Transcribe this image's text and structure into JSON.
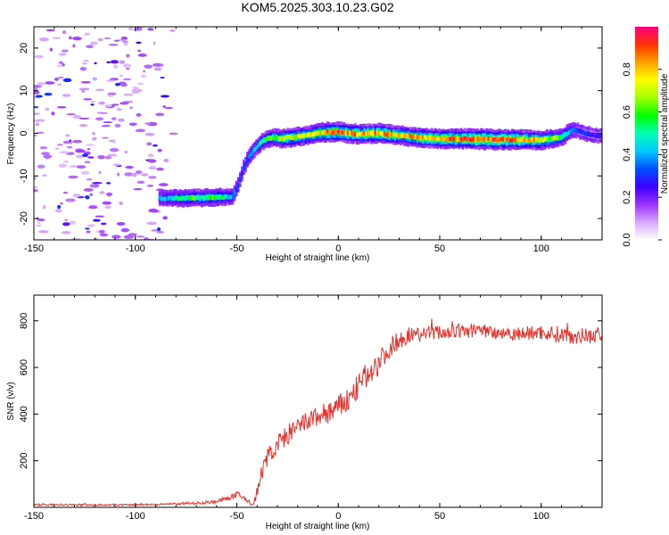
{
  "title": "KOM5.2025.303.10.23.G02",
  "chart_data": [
    {
      "type": "heatmap",
      "xlabel": "Height of straight line (km)",
      "ylabel": "Frequency (Hz)",
      "xlim": [
        -150,
        130
      ],
      "ylim": [
        -25,
        25
      ],
      "xticks": [
        -150,
        -100,
        -50,
        0,
        50,
        100
      ],
      "yticks": [
        -20,
        -10,
        0,
        10,
        20
      ],
      "colorbar": {
        "label": "Normalized spectral amplitude",
        "range": [
          0,
          1
        ],
        "ticks": [
          "0.0",
          "0.2",
          "0.4",
          "0.6",
          "0.8"
        ],
        "colors": [
          "#ffffff",
          "#d8a8ff",
          "#9b30ff",
          "#3a00ff",
          "#0050ff",
          "#00c8ff",
          "#00ffb0",
          "#00ff00",
          "#a0ff00",
          "#ffff00",
          "#ffa000",
          "#ff3000",
          "#ff0080"
        ]
      },
      "trace": {
        "x": [
          -88,
          -75,
          -60,
          -52,
          -49,
          -47,
          -45,
          -43,
          -40,
          -36,
          -32,
          -28,
          -24,
          -20,
          -15,
          -10,
          -5,
          0,
          10,
          20,
          30,
          40,
          50,
          60,
          70,
          80,
          90,
          100,
          110,
          115,
          118,
          122,
          126,
          130
        ],
        "frequency_hz": [
          -15.2,
          -15.2,
          -15.0,
          -14.8,
          -12.0,
          -8.5,
          -6.5,
          -4.8,
          -3.0,
          -1.5,
          -1.0,
          -1.2,
          -1.0,
          -0.8,
          -0.5,
          0.0,
          0.3,
          0.3,
          -0.2,
          0.0,
          -0.5,
          -1.0,
          -1.3,
          -1.3,
          -1.4,
          -1.5,
          -1.5,
          -1.6,
          -1.0,
          0.8,
          0.6,
          0.0,
          -0.5,
          -0.6
        ],
        "amplitude": [
          0.38,
          0.55,
          0.58,
          0.42,
          0.3,
          0.3,
          0.35,
          0.4,
          0.45,
          0.55,
          0.62,
          0.7,
          0.75,
          0.72,
          0.7,
          0.75,
          0.82,
          0.85,
          0.8,
          0.85,
          0.75,
          0.8,
          0.82,
          0.85,
          0.92,
          0.9,
          0.85,
          0.75,
          0.55,
          0.38,
          0.3,
          0.28,
          0.25,
          0.25
        ]
      },
      "noise_x_range": [
        -150,
        -85
      ]
    },
    {
      "type": "line",
      "xlabel": "Height of straight line (km)",
      "ylabel": "SNR (v/v)",
      "xlim": [
        -150,
        130
      ],
      "ylim": [
        0,
        910
      ],
      "xticks": [
        -150,
        -100,
        -50,
        0,
        50,
        100
      ],
      "yticks": [
        200,
        400,
        600,
        800
      ],
      "color": "#e8302a",
      "series": [
        {
          "x": [
            -150,
            -120,
            -90,
            -70,
            -60,
            -55,
            -50,
            -47,
            -44,
            -42,
            -40,
            -38,
            -35,
            -30,
            -25,
            -20,
            -15,
            -10,
            -5,
            0,
            5,
            10,
            15,
            20,
            25,
            30,
            35,
            40,
            50,
            60,
            70,
            80,
            90,
            100,
            110,
            120,
            130
          ],
          "values": [
            12,
            10,
            12,
            18,
            25,
            38,
            55,
            42,
            25,
            8,
            65,
            140,
            215,
            270,
            310,
            340,
            370,
            390,
            405,
            430,
            460,
            520,
            580,
            620,
            680,
            720,
            740,
            745,
            750,
            755,
            760,
            750,
            745,
            750,
            740,
            735,
            740
          ],
          "noise_amplitude": [
            4,
            4,
            4,
            6,
            8,
            10,
            14,
            14,
            12,
            8,
            28,
            35,
            40,
            45,
            45,
            45,
            45,
            48,
            50,
            52,
            55,
            55,
            55,
            55,
            45,
            40,
            35,
            32,
            32,
            32,
            32,
            32,
            32,
            32,
            38,
            35,
            35
          ]
        }
      ]
    }
  ]
}
